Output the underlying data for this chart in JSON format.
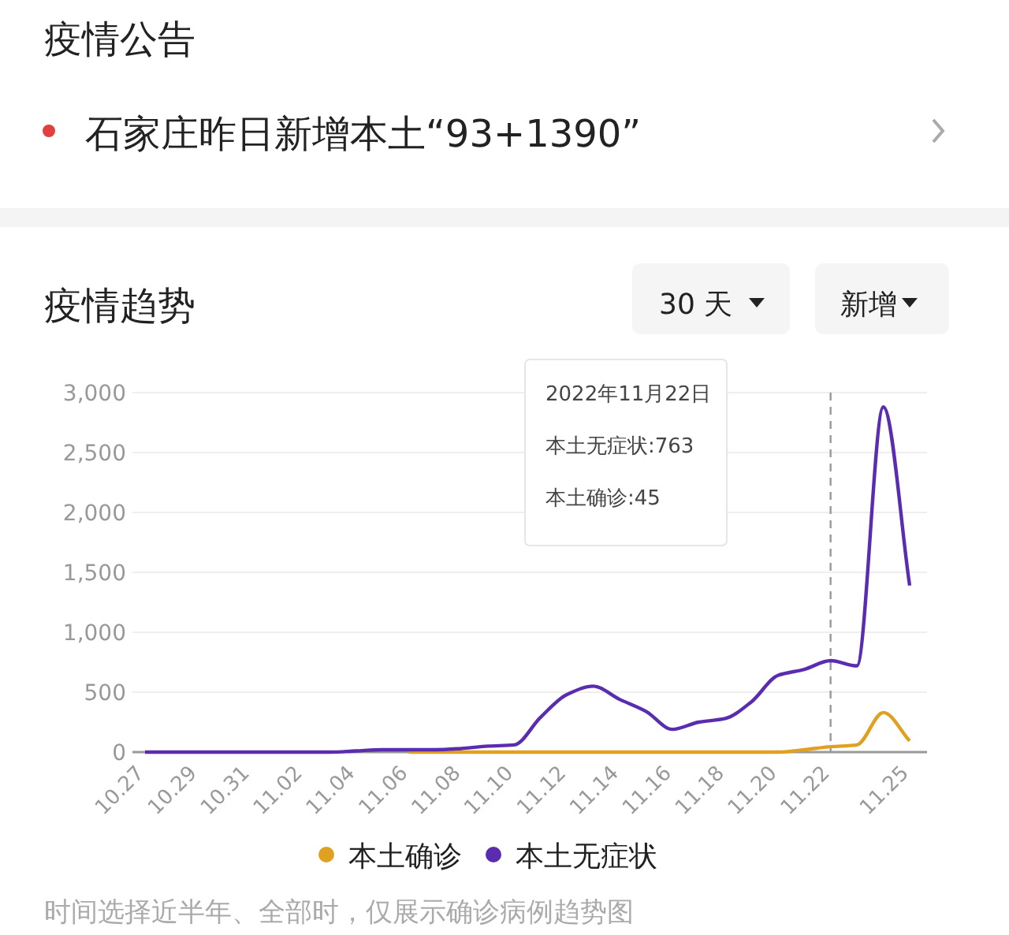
{
  "chart_data": {
    "type": "line",
    "title": "疫情趋势",
    "annotations": [
      "疫情公告",
      "石家庄昨日新增本土“93+1390”",
      "30 天",
      "新增",
      "时间选择近半年、全部时，仅展示确诊病例趋势图",
      "2022年11月22日",
      "本土无症状:763",
      "本土确诊:45"
    ],
    "categories": [
      "10.27",
      null,
      "10.29",
      null,
      "10.31",
      null,
      "11.02",
      null,
      "11.04",
      null,
      "11.06",
      null,
      "11.08",
      null,
      "11.10",
      null,
      "11.12",
      null,
      "11.14",
      null,
      "11.16",
      null,
      "11.18",
      null,
      "11.20",
      null,
      "11.22",
      null,
      null,
      "11.25"
    ],
    "series": [
      {
        "name": "本土确诊",
        "color": "#e0a020",
        "values": [
          null,
          null,
          null,
          null,
          null,
          null,
          null,
          null,
          null,
          null,
          0,
          0,
          0,
          0,
          0,
          0,
          0,
          0,
          0,
          0,
          0,
          0,
          0,
          0,
          0,
          20,
          45,
          60,
          330,
          93
        ]
      },
      {
        "name": "本土无症状",
        "color": "#5a2db0",
        "values": [
          0,
          0,
          0,
          0,
          0,
          0,
          0,
          0,
          10,
          20,
          20,
          20,
          30,
          50,
          60,
          290,
          480,
          550,
          440,
          340,
          190,
          250,
          280,
          420,
          640,
          690,
          763,
          720,
          2880,
          1390
        ]
      }
    ],
    "ylim": [
      0,
      3000
    ],
    "yticks": [
      0,
      {
        "value": 500,
        "label": "500"
      },
      {
        "value": 1000,
        "label": "1,000"
      },
      {
        "value": 1500,
        "label": "1,500"
      },
      {
        "value": 2000,
        "label": "2,000"
      },
      {
        "value": 2500,
        "label": "2,500"
      },
      {
        "value": 3000,
        "label": "3,000"
      }
    ],
    "ref_lines": [
      {
        "axis": "x",
        "value": "11.22",
        "color": "#999999",
        "line_style": "dashed"
      }
    ],
    "grid": "y",
    "legend": "bottom",
    "marker": "none",
    "line_style": "solid"
  }
}
